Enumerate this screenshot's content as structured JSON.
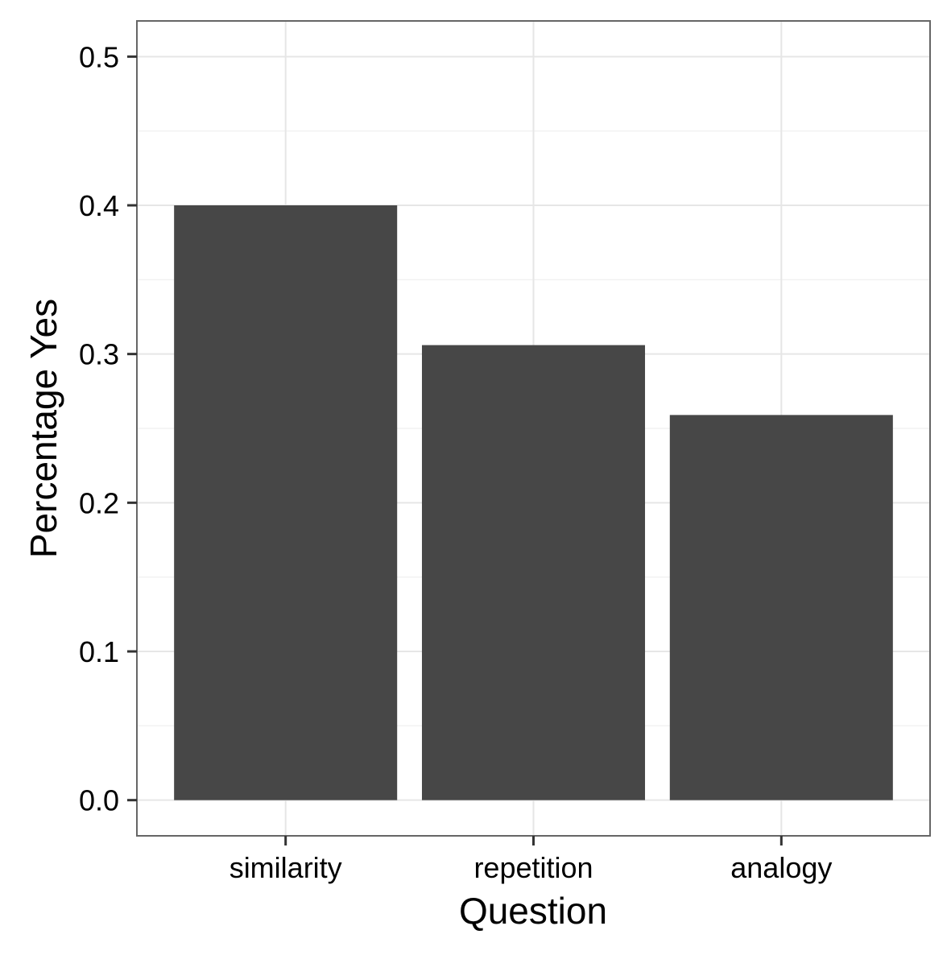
{
  "chart_data": {
    "type": "bar",
    "title": "",
    "xlabel": "Question",
    "ylabel": "Percentage Yes",
    "categories": [
      "similarity",
      "repetition",
      "analogy"
    ],
    "values": [
      0.4,
      0.306,
      0.259
    ],
    "ylim": [
      -0.024,
      0.524
    ],
    "yticks": [
      0.0,
      0.1,
      0.2,
      0.3,
      0.4,
      0.5
    ],
    "ytick_labels": [
      "0.0",
      "0.1",
      "0.2",
      "0.3",
      "0.4",
      "0.5"
    ],
    "grid": true,
    "legend": "none",
    "bar_color": "#474747",
    "panel_border_color": "#666666",
    "grid_color": "#e6e6e6"
  }
}
